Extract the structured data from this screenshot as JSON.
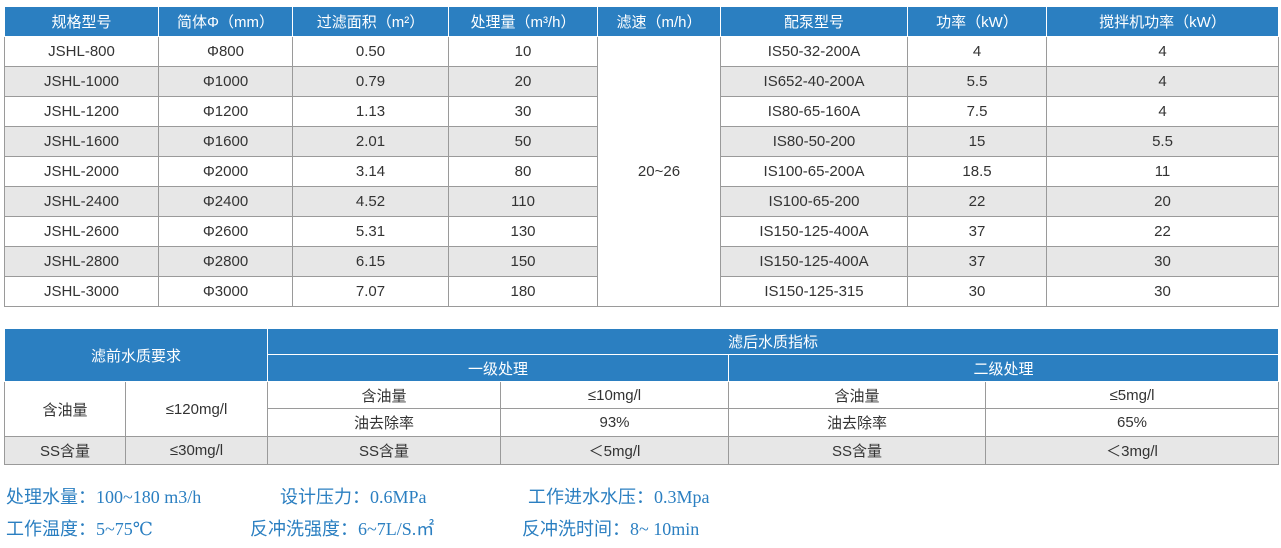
{
  "table1": {
    "header": [
      "规格型号",
      "简体Φ（mm）",
      "过滤面积（m²）",
      "处理量（m³/h）",
      "滤速（m/h）",
      "配泵型号",
      "功率（kW）",
      "搅拌机功率（kW）"
    ],
    "filtration_rate": "20~26",
    "rows": [
      [
        "JSHL-800",
        "Φ800",
        "0.50",
        "10",
        "IS50-32-200A",
        "4",
        "4"
      ],
      [
        "JSHL-1000",
        "Φ1000",
        "0.79",
        "20",
        "IS652-40-200A",
        "5.5",
        "4"
      ],
      [
        "JSHL-1200",
        "Φ1200",
        "1.13",
        "30",
        "IS80-65-160A",
        "7.5",
        "4"
      ],
      [
        "JSHL-1600",
        "Φ1600",
        "2.01",
        "50",
        "IS80-50-200",
        "15",
        "5.5"
      ],
      [
        "JSHL-2000",
        "Φ2000",
        "3.14",
        "80",
        "IS100-65-200A",
        "18.5",
        "11"
      ],
      [
        "JSHL-2400",
        "Φ2400",
        "4.52",
        "110",
        "IS100-65-200",
        "22",
        "20"
      ],
      [
        "JSHL-2600",
        "Φ2600",
        "5.31",
        "130",
        "IS150-125-400A",
        "37",
        "22"
      ],
      [
        "JSHL-2800",
        "Φ2800",
        "6.15",
        "150",
        "IS150-125-400A",
        "37",
        "30"
      ],
      [
        "JSHL-3000",
        "Φ3000",
        "7.07",
        "180",
        "IS150-125-315",
        "30",
        "30"
      ]
    ]
  },
  "table2": {
    "header": {
      "before": "滤前水质要求",
      "after": "滤后水质指标",
      "level1": "一级处理",
      "level2": "二级处理"
    },
    "rows": [
      [
        "含油量",
        "≤120mg/l",
        "含油量",
        "≤10mg/l",
        "含油量",
        "≤5mg/l"
      ],
      [
        "油去除率",
        "93%",
        "油去除率",
        "65%"
      ],
      [
        "SS含量",
        "≤30mg/l",
        "SS含量",
        "＜5mg/l",
        "SS含量",
        "＜3mg/l"
      ]
    ]
  },
  "notes": [
    [
      "处理水量：100~180 m3/h",
      "设计压力：0.6MPa",
      "工作进水水压：0.3Mpa"
    ],
    [
      "工作温度：5~75℃",
      "反冲洗强度：6~7L/S.㎡",
      "反冲洗时间：8~ 10min"
    ]
  ]
}
